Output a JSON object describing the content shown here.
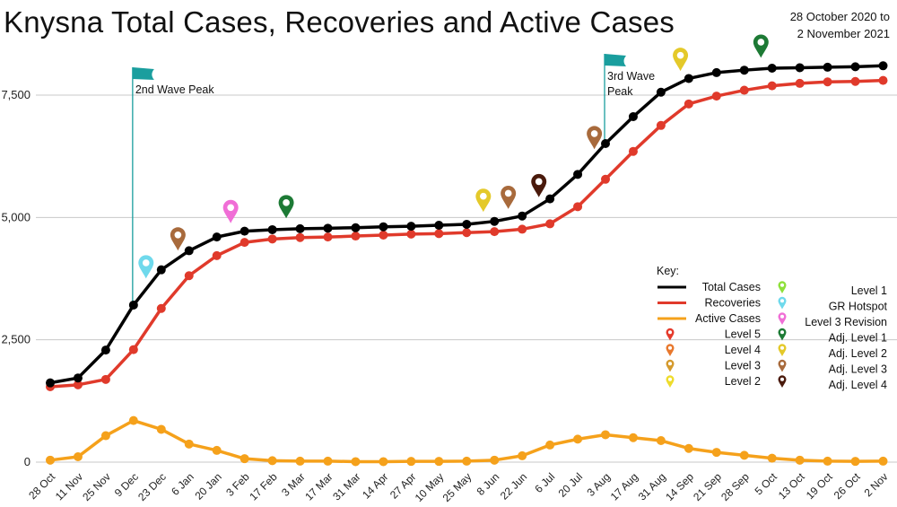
{
  "header": {
    "title": "Knysna Total Cases, Recoveries and Active Cases",
    "date_line1": "28 October 2020 to",
    "date_line2": "2 November 2021"
  },
  "chart_data": {
    "type": "line",
    "title": "Knysna Total Cases, Recoveries and Active Cases",
    "categories": [
      "28 Oct",
      "11 Nov",
      "25 Nov",
      "9 Dec",
      "23 Dec",
      "6 Jan",
      "20 Jan",
      "3 Feb",
      "17 Feb",
      "3 Mar",
      "17 Mar",
      "31 Mar",
      "14 Apr",
      "27 Apr",
      "10 May",
      "25 May",
      "8 Jun",
      "22 Jun",
      "6 Jul",
      "20 Jul",
      "3 Aug",
      "17 Aug",
      "31 Aug",
      "14 Sep",
      "21 Sep",
      "28 Sep",
      "5 Oct",
      "13 Oct",
      "19 Oct",
      "26 Oct",
      "2 Nov"
    ],
    "ylim": [
      0,
      8250
    ],
    "yticks": [
      0,
      2500,
      5000,
      7500
    ],
    "ytick_labels": [
      "0",
      "2,500",
      "5,000",
      "7,500"
    ],
    "grid": true,
    "series": [
      {
        "name": "Total Cases",
        "color": "#000000",
        "values": [
          1620,
          1720,
          2290,
          3210,
          3930,
          4320,
          4600,
          4720,
          4750,
          4770,
          4780,
          4790,
          4810,
          4820,
          4840,
          4860,
          4920,
          5030,
          5380,
          5880,
          6510,
          7060,
          7560,
          7840,
          7960,
          8010,
          8050,
          8060,
          8070,
          8080,
          8100
        ]
      },
      {
        "name": "Recoveries",
        "color": "#e03a2b",
        "values": [
          1540,
          1580,
          1690,
          2300,
          3140,
          3810,
          4220,
          4490,
          4560,
          4590,
          4600,
          4620,
          4640,
          4660,
          4670,
          4690,
          4710,
          4760,
          4870,
          5220,
          5780,
          6350,
          6880,
          7320,
          7480,
          7600,
          7690,
          7740,
          7770,
          7780,
          7800
        ]
      },
      {
        "name": "Active Cases",
        "color": "#f5a11b",
        "values": [
          40,
          110,
          540,
          850,
          670,
          370,
          240,
          70,
          30,
          20,
          20,
          10,
          10,
          15,
          15,
          20,
          40,
          130,
          350,
          470,
          560,
          500,
          440,
          280,
          200,
          140,
          80,
          40,
          20,
          15,
          20
        ]
      }
    ],
    "annotations": [
      {
        "label_line1": "2nd Wave Peak",
        "label_line2": "",
        "x": "9 Dec",
        "color": "#1a9e9e"
      },
      {
        "label_line1": "3rd Wave",
        "label_line2": "Peak",
        "x": "3 Aug",
        "color": "#1a9e9e"
      }
    ],
    "pins": [
      {
        "label": "GR Hotspot",
        "x_index": 3.45,
        "y": 3900,
        "color": "#6fd9ec"
      },
      {
        "label": "Adj. Level 3",
        "x_index": 4.6,
        "y": 4470,
        "color": "#a86a3c"
      },
      {
        "label": "Level 3 Revision",
        "x_index": 6.5,
        "y": 5030,
        "color": "#f06ed6"
      },
      {
        "label": "Adj. Level 1",
        "x_index": 8.5,
        "y": 5130,
        "color": "#1d7a35"
      },
      {
        "label": "Adj. Level 2",
        "x_index": 15.6,
        "y": 5260,
        "color": "#e4c92a"
      },
      {
        "label": "Adj. Level 3",
        "x_index": 16.5,
        "y": 5320,
        "color": "#a86a3c"
      },
      {
        "label": "Adj. Level 4",
        "x_index": 17.6,
        "y": 5560,
        "color": "#4a1a0c"
      },
      {
        "label": "Adj. Level 3",
        "x_index": 19.6,
        "y": 6540,
        "color": "#a86a3c"
      },
      {
        "label": "Adj. Level 2",
        "x_index": 22.7,
        "y": 8140,
        "color": "#e4c92a"
      },
      {
        "label": "Adj. Level 1",
        "x_index": 25.6,
        "y": 8410,
        "color": "#1d7a35"
      }
    ],
    "legend": {
      "title": "Key:",
      "placement": "right",
      "left_items": [
        {
          "label": "Total Cases",
          "kind": "line",
          "color": "#000000"
        },
        {
          "label": "Recoveries",
          "kind": "line",
          "color": "#e03a2b"
        },
        {
          "label": "Active Cases",
          "kind": "line",
          "color": "#f5a11b"
        },
        {
          "label": "Level 5",
          "kind": "pin",
          "color": "#e53b2c"
        },
        {
          "label": "Level 4",
          "kind": "pin",
          "color": "#e8782d"
        },
        {
          "label": "Level 3",
          "kind": "pin",
          "color": "#d49a2d"
        },
        {
          "label": "Level 2",
          "kind": "pin",
          "color": "#eedc2c"
        }
      ],
      "right_items": [
        {
          "label": "Level 1",
          "kind": "pin",
          "color": "#8ee03a"
        },
        {
          "label": "GR Hotspot",
          "kind": "pin",
          "color": "#6fd9ec"
        },
        {
          "label": "Level 3 Revision",
          "kind": "pin",
          "color": "#f06ed6"
        },
        {
          "label": "Adj. Level 1",
          "kind": "pin",
          "color": "#1d7a35"
        },
        {
          "label": "Adj. Level 2",
          "kind": "pin",
          "color": "#e4c92a"
        },
        {
          "label": "Adj. Level 3",
          "kind": "pin",
          "color": "#a86a3c"
        },
        {
          "label": "Adj. Level 4",
          "kind": "pin",
          "color": "#4a1a0c"
        }
      ]
    }
  }
}
